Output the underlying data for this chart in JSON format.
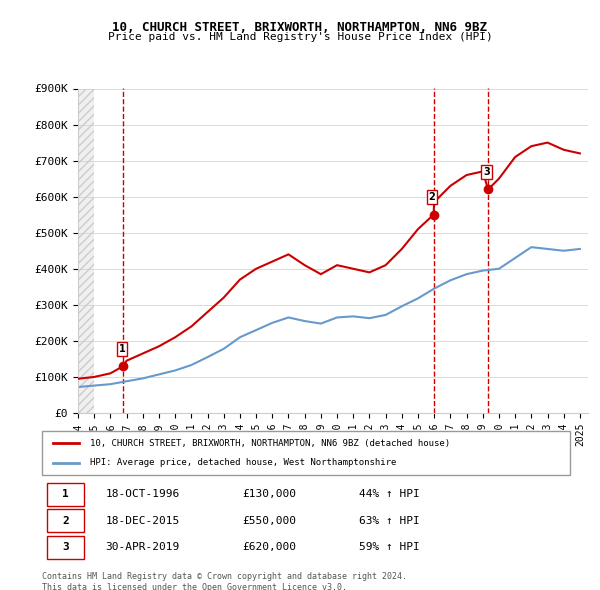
{
  "title": "10, CHURCH STREET, BRIXWORTH, NORTHAMPTON, NN6 9BZ",
  "subtitle": "Price paid vs. HM Land Registry's House Price Index (HPI)",
  "ylabel": "",
  "ylim": [
    0,
    900000
  ],
  "yticks": [
    0,
    100000,
    200000,
    300000,
    400000,
    500000,
    600000,
    700000,
    800000,
    900000
  ],
  "ytick_labels": [
    "£0",
    "£100K",
    "£200K",
    "£300K",
    "£400K",
    "£500K",
    "£600K",
    "£700K",
    "£800K",
    "£900K"
  ],
  "xlim_start": 1994.0,
  "xlim_end": 2025.5,
  "sale_dates": [
    1996.8,
    2015.96,
    2019.33
  ],
  "sale_prices": [
    130000,
    550000,
    620000
  ],
  "sale_labels": [
    "1",
    "2",
    "3"
  ],
  "red_color": "#cc0000",
  "blue_color": "#6699cc",
  "dashed_color": "#cc0000",
  "background_hatch_color": "#e8e8e8",
  "legend_red_label": "10, CHURCH STREET, BRIXWORTH, NORTHAMPTON, NN6 9BZ (detached house)",
  "legend_blue_label": "HPI: Average price, detached house, West Northamptonshire",
  "table_data": [
    [
      "1",
      "18-OCT-1996",
      "£130,000",
      "44% ↑ HPI"
    ],
    [
      "2",
      "18-DEC-2015",
      "£550,000",
      "63% ↑ HPI"
    ],
    [
      "3",
      "30-APR-2019",
      "£620,000",
      "59% ↑ HPI"
    ]
  ],
  "footnote": "Contains HM Land Registry data © Crown copyright and database right 2024.\nThis data is licensed under the Open Government Licence v3.0.",
  "hpi_years": [
    1994,
    1995,
    1996,
    1997,
    1998,
    1999,
    2000,
    2001,
    2002,
    2003,
    2004,
    2005,
    2006,
    2007,
    2008,
    2009,
    2010,
    2011,
    2012,
    2013,
    2014,
    2015,
    2016,
    2017,
    2018,
    2019,
    2020,
    2021,
    2022,
    2023,
    2024,
    2025
  ],
  "hpi_values": [
    72000,
    76000,
    80000,
    88000,
    96000,
    107000,
    118000,
    133000,
    155000,
    178000,
    210000,
    230000,
    250000,
    265000,
    255000,
    248000,
    265000,
    268000,
    263000,
    272000,
    296000,
    318000,
    345000,
    368000,
    385000,
    395000,
    400000,
    430000,
    460000,
    455000,
    450000,
    455000
  ],
  "prop_years": [
    1994,
    1995,
    1996,
    1996.8,
    1997,
    1998,
    1999,
    2000,
    2001,
    2002,
    2003,
    2004,
    2005,
    2006,
    2007,
    2008,
    2009,
    2010,
    2011,
    2012,
    2013,
    2014,
    2015,
    2015.96,
    2016,
    2017,
    2018,
    2019,
    2019.33,
    2020,
    2021,
    2022,
    2023,
    2024,
    2025
  ],
  "prop_values": [
    95000,
    100000,
    110000,
    130000,
    145000,
    165000,
    185000,
    210000,
    240000,
    280000,
    320000,
    370000,
    400000,
    420000,
    440000,
    410000,
    385000,
    410000,
    400000,
    390000,
    410000,
    455000,
    510000,
    550000,
    585000,
    630000,
    660000,
    670000,
    620000,
    650000,
    710000,
    740000,
    750000,
    730000,
    720000
  ]
}
